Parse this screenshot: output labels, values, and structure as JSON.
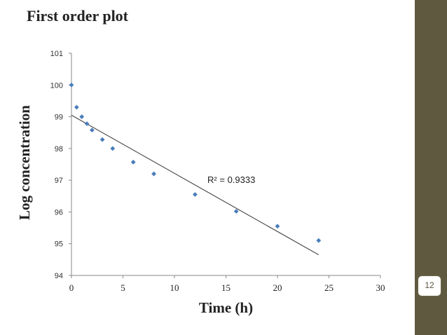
{
  "slide": {
    "title": "First order plot",
    "page_number": "12",
    "sidebar_color": "#5f5a3f",
    "accent_color": "#4a7ebb"
  },
  "chart_data": {
    "type": "scatter",
    "title": "",
    "xlabel": "Time (h)",
    "ylabel": "Log concentration",
    "xlim": [
      0,
      30
    ],
    "ylim": [
      94,
      101
    ],
    "xticks": [
      0,
      5,
      10,
      15,
      20,
      25,
      30
    ],
    "yticks": [
      94,
      95,
      96,
      97,
      98,
      99,
      100,
      101
    ],
    "grid": false,
    "legend": "none",
    "series": [
      {
        "marker": "diamond",
        "color": "#4a7ebb",
        "x": [
          0,
          0.5,
          1,
          1.5,
          2,
          3,
          4,
          6,
          8,
          12,
          16,
          20,
          24
        ],
        "y": [
          100,
          99.3,
          99.0,
          98.78,
          98.58,
          98.28,
          98.0,
          97.57,
          97.2,
          96.55,
          96.02,
          95.55,
          95.1
        ]
      }
    ],
    "trendline": {
      "type": "linear",
      "color": "#333333",
      "x_start": 0,
      "y_start": 99.05,
      "x_end": 24,
      "y_end": 94.65
    },
    "annotations": [
      {
        "text": "R² = 0.9333",
        "x": 13.2,
        "y": 97
      }
    ]
  }
}
